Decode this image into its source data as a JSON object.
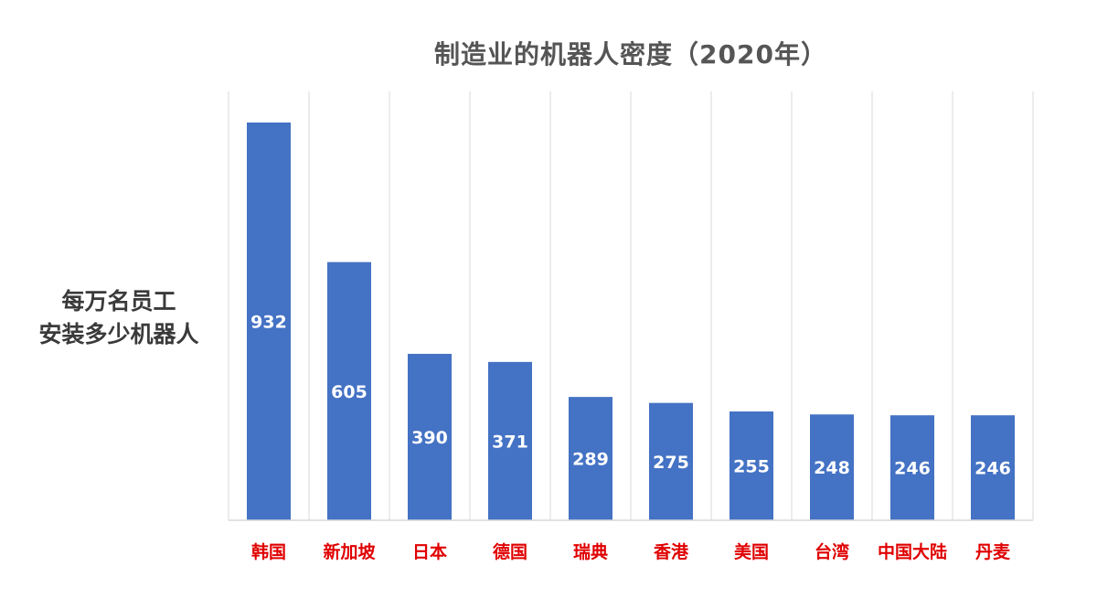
{
  "chart_data": {
    "type": "bar",
    "title": "制造业的机器人密度（2020年）",
    "ylabel_lines": [
      "每万名员工",
      "安装多少机器人"
    ],
    "xlabel": "",
    "categories": [
      "韩国",
      "新加坡",
      "日本",
      "德国",
      "瑞典",
      "香港",
      "美国",
      "台湾",
      "中国大陆",
      "丹麦"
    ],
    "values": [
      932,
      605,
      390,
      371,
      289,
      275,
      255,
      248,
      246,
      246
    ],
    "ylim": [
      0,
      1000
    ],
    "grid": "vertical",
    "legend": "none"
  },
  "colors": {
    "bar": "#4472C4",
    "category_label": "#E00000",
    "data_label": "#ffffff",
    "grid": "#d9d9d9",
    "title": "#555555"
  }
}
